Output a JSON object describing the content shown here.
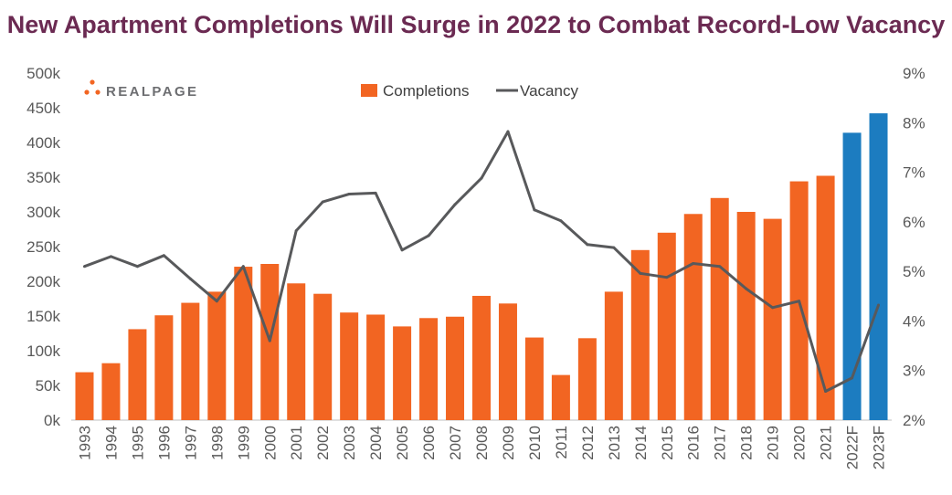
{
  "logo": {
    "text": "REALPAGE",
    "dot_color": "#f26522"
  },
  "colors": {
    "completions": "#f26522",
    "forecast": "#1c7cc0",
    "vacancy": "#58595b",
    "title": "#6b2a52",
    "axis_text": "#595959"
  },
  "chart_data": {
    "type": "bar",
    "title": "New Apartment Completions Will Surge in 2022 to Combat Record-Low Vacancy",
    "categories": [
      "1993",
      "1994",
      "1995",
      "1996",
      "1997",
      "1998",
      "1999",
      "2000",
      "2001",
      "2002",
      "2003",
      "2004",
      "2005",
      "2006",
      "2007",
      "2008",
      "2009",
      "2010",
      "2011",
      "2012",
      "2013",
      "2014",
      "2015",
      "2016",
      "2017",
      "2018",
      "2019",
      "2020",
      "2021",
      "2022F",
      "2023F"
    ],
    "series": [
      {
        "name": "Completions",
        "type": "bar",
        "axis": "left",
        "values": [
          69000,
          82000,
          131000,
          151000,
          169000,
          185000,
          221000,
          225000,
          197000,
          182000,
          155000,
          152000,
          135000,
          147000,
          149000,
          179000,
          168000,
          119000,
          65000,
          118000,
          185000,
          245000,
          270000,
          297000,
          320000,
          300000,
          290000,
          344000,
          352000,
          414000,
          442000
        ],
        "forecast_categories": [
          "2022F",
          "2023F"
        ]
      },
      {
        "name": "Vacancy",
        "type": "line",
        "axis": "right",
        "values": [
          5.1,
          5.3,
          5.1,
          5.32,
          4.85,
          4.4,
          5.1,
          3.6,
          5.82,
          6.4,
          6.56,
          6.58,
          5.43,
          5.72,
          6.35,
          6.88,
          7.82,
          6.24,
          6.02,
          5.54,
          5.48,
          4.96,
          4.88,
          5.16,
          5.1,
          4.65,
          4.27,
          4.4,
          2.58,
          2.85,
          4.32
        ]
      }
    ],
    "yaxis_left": {
      "ticks": [
        "0k",
        "50k",
        "100k",
        "150k",
        "200k",
        "250k",
        "300k",
        "350k",
        "400k",
        "450k",
        "500k"
      ],
      "ylim": [
        0,
        500000
      ]
    },
    "yaxis_right": {
      "ticks": [
        "2%",
        "3%",
        "4%",
        "5%",
        "6%",
        "7%",
        "8%",
        "9%"
      ],
      "ylim": [
        2,
        9
      ]
    },
    "grid": false,
    "legend": {
      "placement": "top-center",
      "entries": [
        "Completions",
        "Vacancy"
      ]
    }
  }
}
